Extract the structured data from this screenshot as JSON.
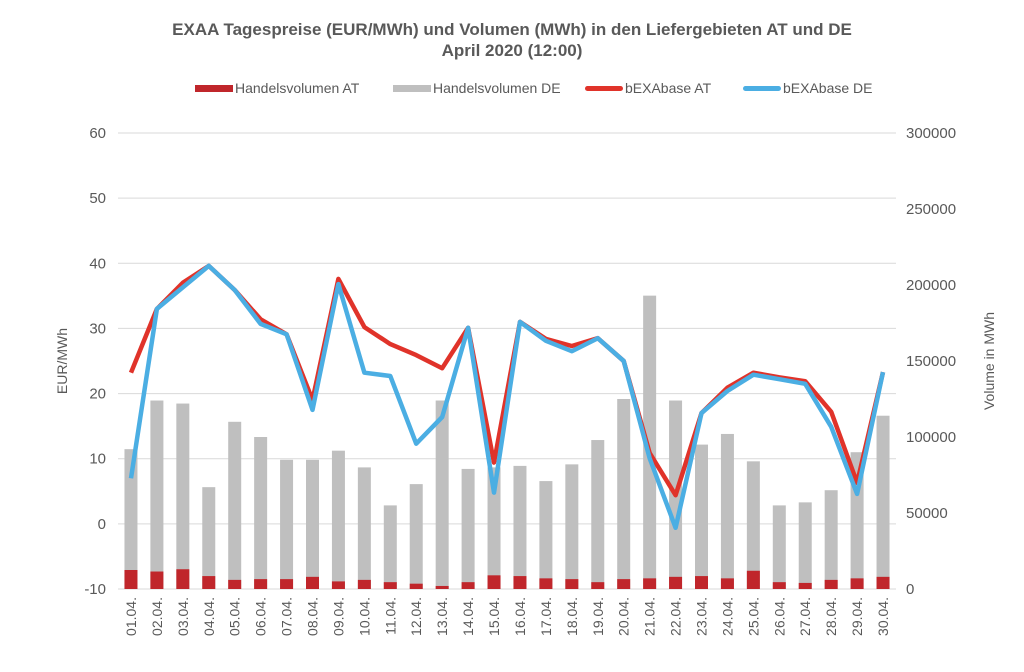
{
  "chart_data": {
    "type": "bar-line-combo",
    "title": "EXAA Tagespreise  (EUR/MWh) und Volumen (MWh) in den Liefergebieten  AT und DE",
    "subtitle": "April 2020 (12:00)",
    "ylabel_left": "EUR/MWh",
    "ylabel_right": "Volume in MWh",
    "ylim_left": [
      -10,
      60
    ],
    "ylim_right": [
      0,
      300000
    ],
    "yticks_left": [
      "60",
      "50",
      "40",
      "30",
      "20",
      "10",
      "0",
      "-10"
    ],
    "yticks_left_values": [
      60,
      50,
      40,
      30,
      20,
      10,
      0,
      -10
    ],
    "yticks_right": [
      "300000",
      "250000",
      "200000",
      "150000",
      "100000",
      "50000",
      "0"
    ],
    "yticks_right_values": [
      300000,
      250000,
      200000,
      150000,
      100000,
      50000,
      0
    ],
    "grid": true,
    "legend_position": "top",
    "categories": [
      "01.04.",
      "02.04.",
      "03.04.",
      "04.04.",
      "05.04.",
      "06.04.",
      "07.04.",
      "08.04.",
      "09.04.",
      "10.04.",
      "11.04.",
      "12.04.",
      "13.04.",
      "14.04.",
      "15.04.",
      "16.04.",
      "17.04.",
      "18.04.",
      "19.04.",
      "20.04.",
      "21.04.",
      "22.04.",
      "23.04.",
      "24.04.",
      "25.04.",
      "26.04.",
      "27.04.",
      "28.04.",
      "29.04.",
      "30.04."
    ],
    "series": [
      {
        "name": "Handelsvolumen AT",
        "kind": "bar",
        "axis": "right",
        "color": "#C0262B",
        "values": [
          12500,
          11500,
          13000,
          8500,
          6000,
          6500,
          6500,
          8000,
          5000,
          6000,
          4500,
          3500,
          2000,
          4500,
          9000,
          8500,
          7000,
          6500,
          4500,
          6500,
          7000,
          8000,
          8500,
          7000,
          12000,
          4500,
          4000,
          6000,
          7000,
          8000
        ]
      },
      {
        "name": "Handelsvolumen DE",
        "kind": "bar",
        "axis": "right",
        "color": "#BFBFBF",
        "values": [
          92000,
          124000,
          122000,
          67000,
          110000,
          100000,
          85000,
          85000,
          91000,
          80000,
          55000,
          69000,
          124000,
          79000,
          80000,
          81000,
          71000,
          82000,
          98000,
          125000,
          193000,
          124000,
          95000,
          102000,
          84000,
          55000,
          57000,
          65000,
          90000,
          114000
        ]
      },
      {
        "name": "bEXAbase AT",
        "kind": "line",
        "axis": "left",
        "color": "#E0332A",
        "values": [
          23.2,
          33.0,
          37.0,
          39.6,
          35.9,
          31.4,
          29.1,
          19.0,
          37.6,
          30.2,
          27.6,
          25.9,
          23.9,
          30.1,
          9.4,
          31.0,
          28.4,
          27.3,
          28.5,
          25.0,
          10.9,
          4.4,
          17.0,
          20.9,
          23.2,
          22.5,
          21.9,
          17.2,
          6.3,
          23.3
        ]
      },
      {
        "name": "bEXAbase DE",
        "kind": "line",
        "axis": "left",
        "color": "#4BAEE3",
        "values": [
          7.0,
          33.0,
          36.3,
          39.6,
          35.9,
          30.7,
          29.1,
          17.5,
          36.8,
          23.2,
          22.7,
          12.3,
          16.4,
          30.1,
          4.8,
          31.0,
          28.1,
          26.5,
          28.5,
          25.0,
          10.1,
          -0.6,
          17.0,
          20.4,
          22.9,
          22.2,
          21.5,
          14.9,
          4.6,
          23.3
        ]
      }
    ]
  }
}
